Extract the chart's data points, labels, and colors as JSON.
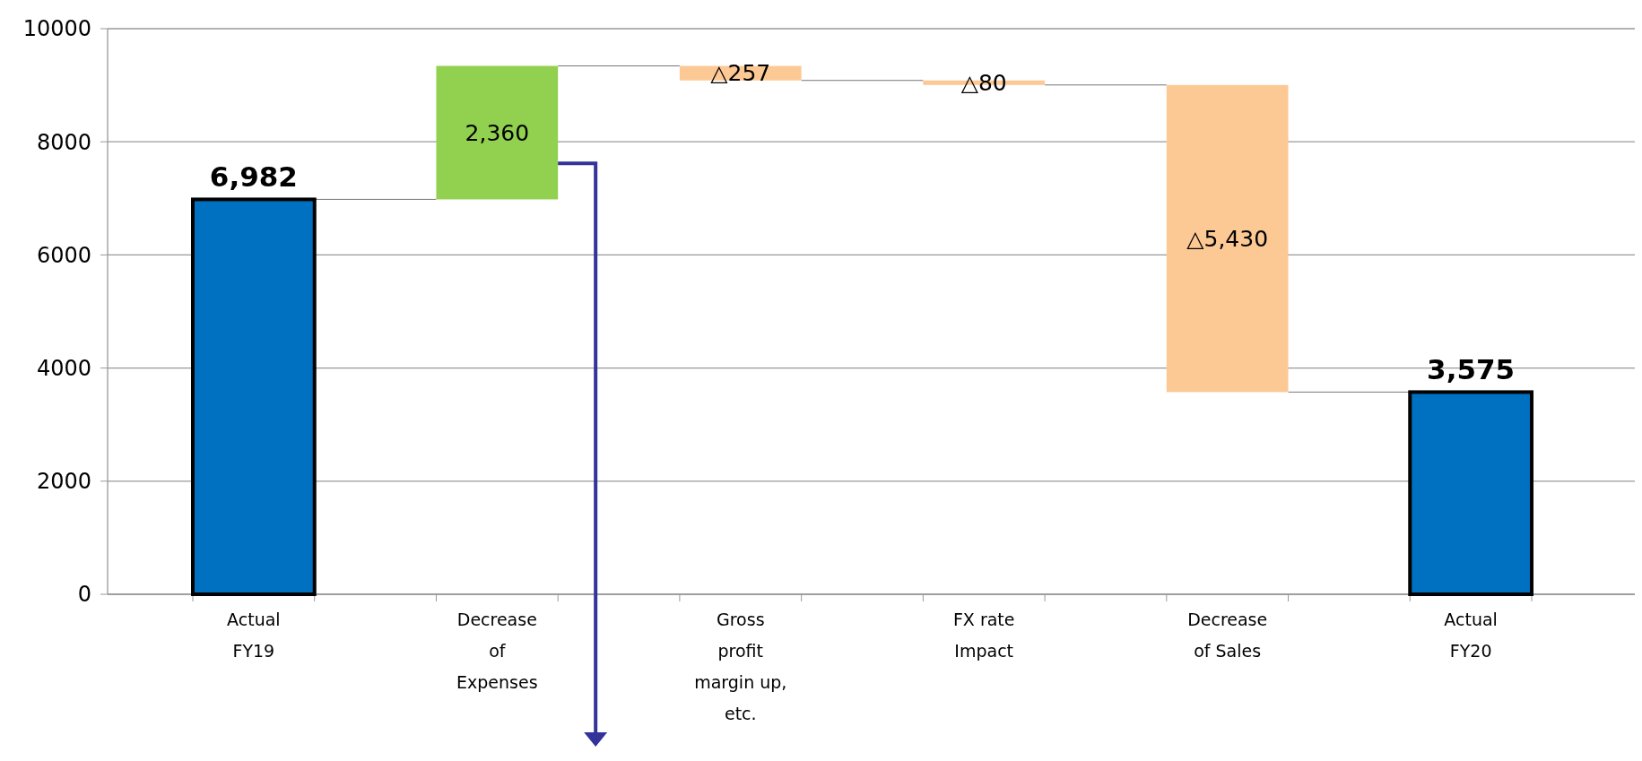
{
  "chart_data": {
    "type": "bar",
    "categories": [
      "Actual\nFY19",
      "Decrease\nof\nExpenses",
      "Gross\nprofit\nmargin up,\netc.",
      "FX rate\nImpact",
      "Decrease\nof Sales",
      "Actual\nFY20"
    ],
    "values": [
      6982,
      2360,
      -257,
      -80,
      -5430,
      3575
    ],
    "base": [
      0,
      6982,
      9342,
      9085,
      9005,
      0
    ],
    "colors": [
      "#0070c0",
      "#92d050",
      "#fcc995",
      "#fcc995",
      "#fcc995",
      "#0070c0"
    ],
    "value_labels": [
      "6,982",
      "2,360",
      "△257",
      "△80",
      "△5,430",
      "3,575"
    ],
    "ylim": [
      0,
      10000
    ],
    "yticks": [
      0,
      2000,
      4000,
      6000,
      8000,
      10000
    ],
    "grid": "y"
  }
}
